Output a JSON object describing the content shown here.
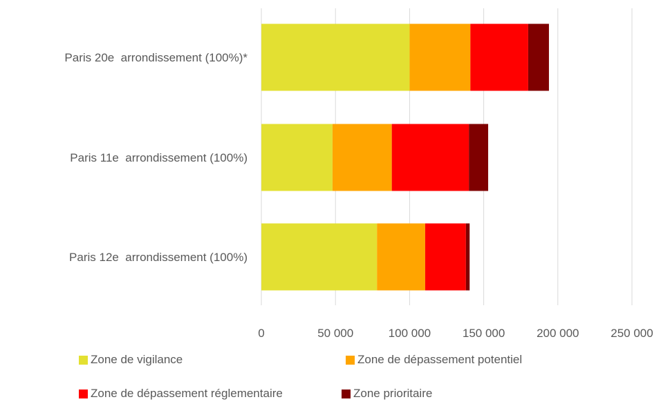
{
  "chart_data": {
    "type": "bar",
    "orientation": "horizontal",
    "stacked": true,
    "categories": [
      "Paris 20e  arrondissement (100%)*",
      "Paris 11e  arrondissement (100%)",
      "Paris 12e  arrondissement (100%)"
    ],
    "series": [
      {
        "name": "Zone de vigilance",
        "color": "#e3e032",
        "values": [
          100000,
          48000,
          78000
        ]
      },
      {
        "name": "Zone de dépassement potentiel",
        "color": "#ffa500",
        "values": [
          41000,
          40000,
          32500
        ]
      },
      {
        "name": "Zone de dépassement réglementaire",
        "color": "#ff0000",
        "values": [
          39000,
          52000,
          27500
        ]
      },
      {
        "name": "Zone prioritaire",
        "color": "#7f0000",
        "values": [
          14000,
          13000,
          2500
        ]
      }
    ],
    "xlim": [
      0,
      250000
    ],
    "x_ticks": [
      0,
      50000,
      100000,
      150000,
      200000,
      250000
    ],
    "x_tick_labels": [
      "0",
      "50 000",
      "100 000",
      "150 000",
      "200 000",
      "250 000"
    ],
    "grid": "vertical",
    "legend_position": "bottom",
    "title": "",
    "xlabel": "",
    "ylabel": ""
  }
}
